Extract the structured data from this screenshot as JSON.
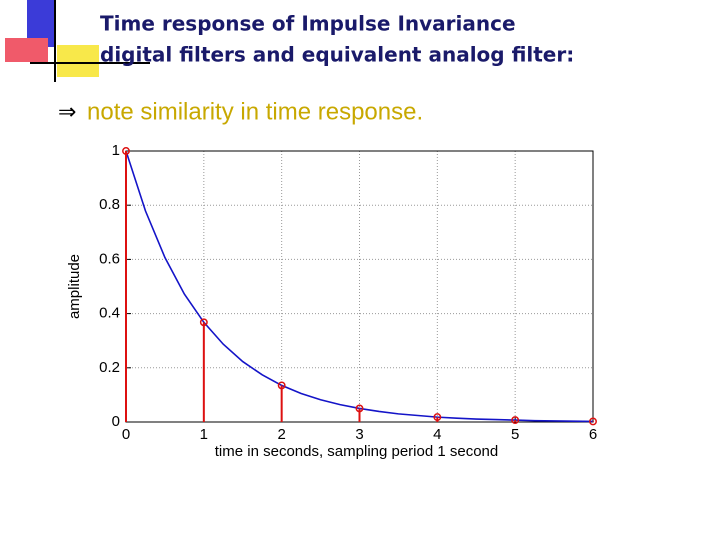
{
  "header": {
    "title_lines": [
      "Time response of Impulse Invariance",
      "digital filters  and  equivalent analog filter:"
    ]
  },
  "bullet": {
    "marker": "⇒",
    "text": "note similarity in time response."
  },
  "chart_data": {
    "type": "line",
    "xlabel": "time in seconds,  sampling period 1 second",
    "ylabel": "amplitude",
    "xlim": [
      0,
      6
    ],
    "ylim": [
      0,
      1
    ],
    "xticks": [
      0,
      1,
      2,
      3,
      4,
      5,
      6
    ],
    "yticks": [
      0,
      0.2,
      0.4,
      0.6,
      0.8,
      1
    ],
    "grid": true,
    "series": [
      {
        "type": "line",
        "color": "#1414c8",
        "x": [
          0,
          0.25,
          0.5,
          0.75,
          1,
          1.25,
          1.5,
          1.75,
          2,
          2.25,
          2.5,
          2.75,
          3,
          3.25,
          3.5,
          3.75,
          4,
          4.25,
          4.5,
          4.75,
          5,
          5.25,
          5.5,
          5.75,
          6
        ],
        "values": [
          1,
          0.779,
          0.607,
          0.472,
          0.368,
          0.287,
          0.223,
          0.174,
          0.135,
          0.105,
          0.082,
          0.064,
          0.05,
          0.039,
          0.03,
          0.024,
          0.018,
          0.014,
          0.011,
          0.009,
          0.007,
          0.005,
          0.004,
          0.003,
          0.002
        ]
      },
      {
        "type": "stem",
        "color": "#dd1010",
        "x": [
          0,
          1,
          2,
          3,
          4,
          5,
          6
        ],
        "values": [
          1,
          0.368,
          0.135,
          0.05,
          0.018,
          0.007,
          0.002
        ]
      }
    ]
  }
}
